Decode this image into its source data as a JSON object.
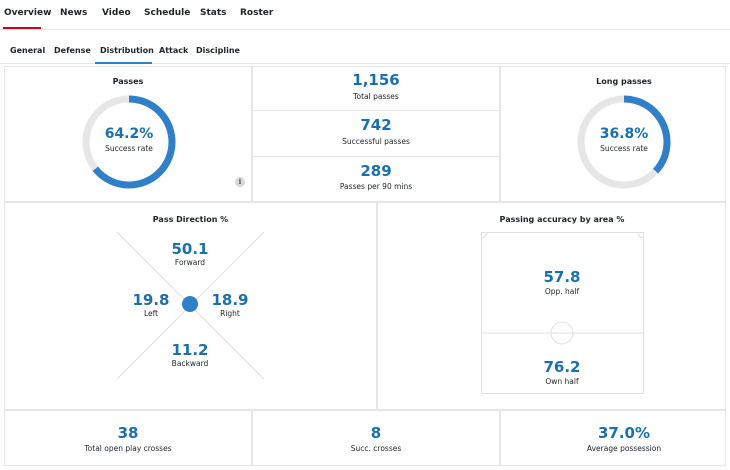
{
  "nav": {
    "items": [
      "Overview",
      "News",
      "Video",
      "Schedule",
      "Stats",
      "Roster"
    ],
    "active": "Overview"
  },
  "subtabs": {
    "items": [
      "General",
      "Defense",
      "Distribution",
      "Attack",
      "Discipline"
    ],
    "active": "Distribution"
  },
  "passes": {
    "title": "Passes",
    "value": "64.2%",
    "label": "Success rate",
    "fraction": 0.642
  },
  "totals": [
    {
      "value": "1,156",
      "label": "Total passes"
    },
    {
      "value": "742",
      "label": "Successful passes"
    },
    {
      "value": "289",
      "label": "Passes per 90 mins"
    }
  ],
  "long_passes": {
    "title": "Long passes",
    "value": "36.8%",
    "label": "Success rate",
    "fraction": 0.368
  },
  "info_icon": "info-icon",
  "direction": {
    "title": "Pass Direction %",
    "forward": {
      "value": "50.1",
      "label": "Forward"
    },
    "left": {
      "value": "19.8",
      "label": "Left"
    },
    "right": {
      "value": "18.9",
      "label": "Right"
    },
    "backward": {
      "value": "11.2",
      "label": "Backward"
    }
  },
  "accuracy": {
    "title": "Passing accuracy by area %",
    "opp_half": {
      "value": "57.8",
      "label": "Opp. half"
    },
    "own_half": {
      "value": "76.2",
      "label": "Own half"
    }
  },
  "bottom": [
    {
      "value": "38",
      "label": "Total open play crosses"
    },
    {
      "value": "8",
      "label": "Succ. crosses"
    },
    {
      "value": "37.0%",
      "label": "Average possession"
    }
  ],
  "colors": {
    "accent": "#1a6fae",
    "ring": "#2f80c8",
    "ring_track": "#e6e6e6",
    "nav_active": "#d0021b"
  }
}
